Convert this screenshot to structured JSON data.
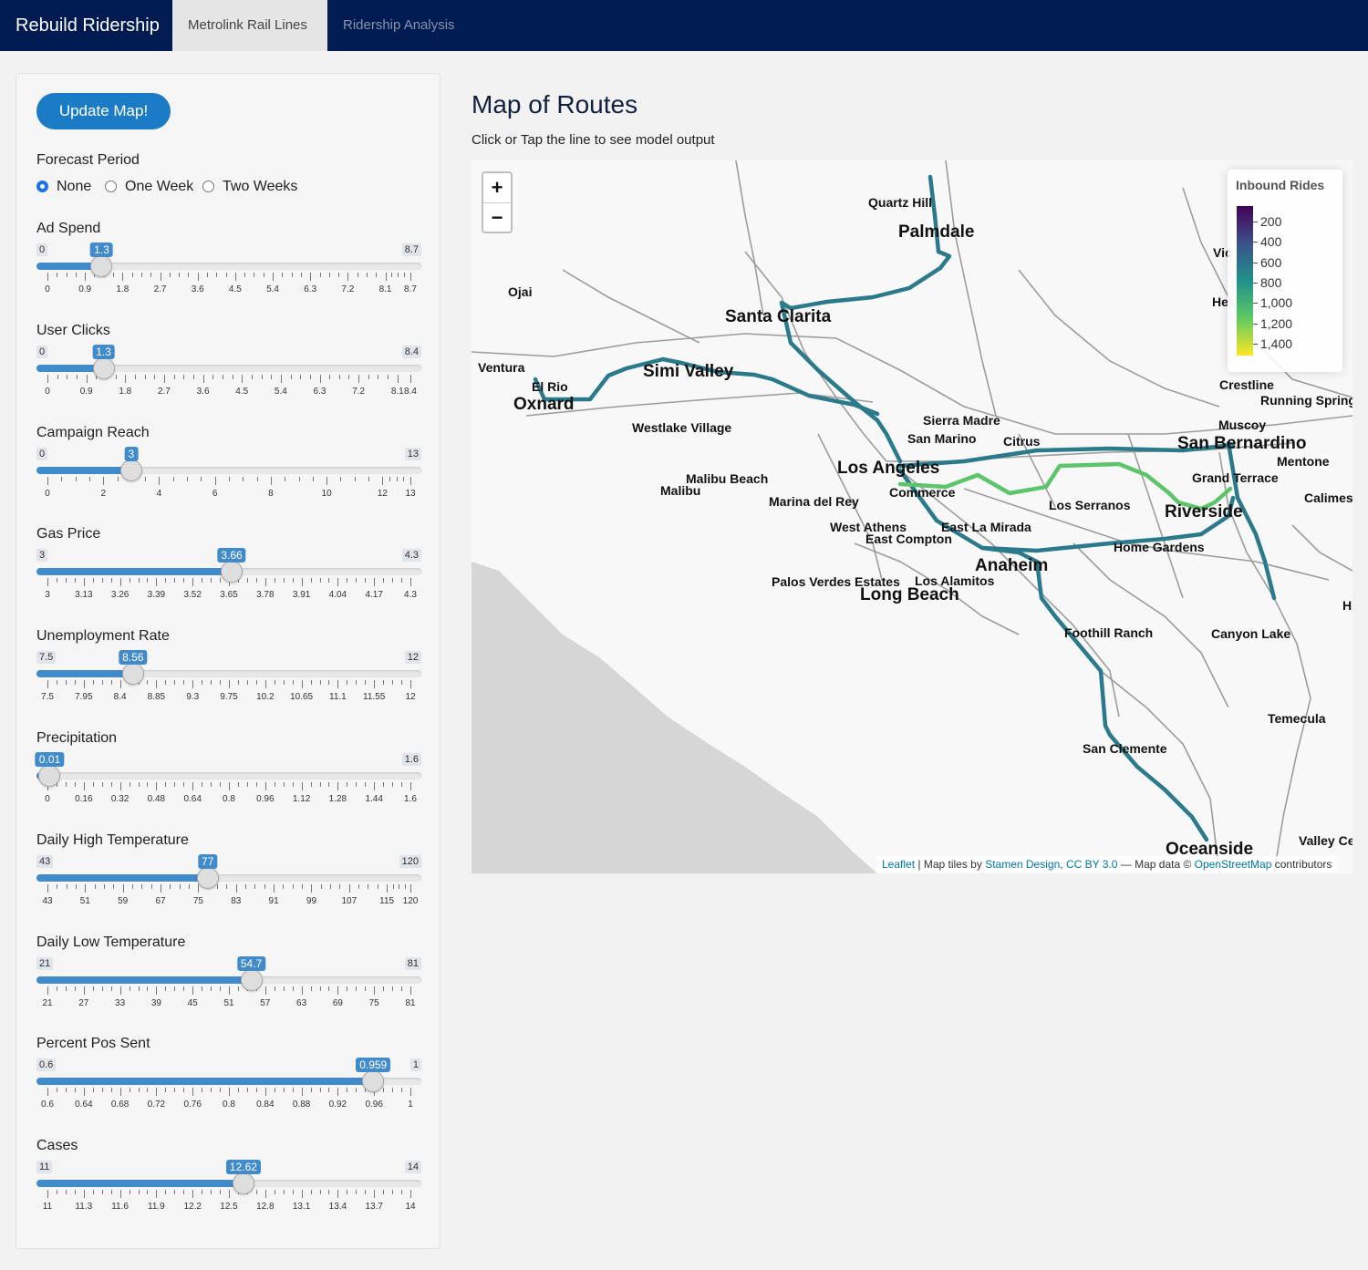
{
  "navbar": {
    "brand": "Rebuild Ridership",
    "tabs": [
      {
        "label": "Metrolink Rail Lines",
        "active": true
      },
      {
        "label": "Ridership Analysis",
        "active": false
      }
    ]
  },
  "sidebar": {
    "update_button": "Update Map!",
    "forecast_period": {
      "label": "Forecast Period",
      "options": [
        "None",
        "One Week",
        "Two Weeks"
      ],
      "selected": "None"
    },
    "sliders": [
      {
        "label": "Ad Spend",
        "min": 0,
        "max": 8.7,
        "value": 1.3,
        "min_label": "0",
        "max_label": "8.7",
        "value_label": "1.3",
        "ticks": [
          "0",
          "0.9",
          "1.8",
          "2.7",
          "3.6",
          "4.5",
          "5.4",
          "6.3",
          "7.2",
          "8.1",
          "8.7"
        ]
      },
      {
        "label": "User Clicks",
        "min": 0,
        "max": 8.4,
        "value": 1.3,
        "min_label": "0",
        "max_label": "8.4",
        "value_label": "1.3",
        "ticks": [
          "0",
          "0.9",
          "1.8",
          "2.7",
          "3.6",
          "4.5",
          "5.4",
          "6.3",
          "7.2",
          "8.1",
          "8.4"
        ]
      },
      {
        "label": "Campaign Reach",
        "min": 0,
        "max": 13,
        "value": 3,
        "min_label": "0",
        "max_label": "13",
        "value_label": "3",
        "ticks": [
          "0",
          "2",
          "4",
          "6",
          "8",
          "10",
          "12",
          "13"
        ]
      },
      {
        "label": "Gas Price",
        "min": 3,
        "max": 4.3,
        "value": 3.66,
        "min_label": "3",
        "max_label": "4.3",
        "value_label": "3.66",
        "ticks": [
          "3",
          "3.13",
          "3.26",
          "3.39",
          "3.52",
          "3.65",
          "3.78",
          "3.91",
          "4.04",
          "4.17",
          "4.3"
        ]
      },
      {
        "label": "Unemployment Rate",
        "min": 7.5,
        "max": 12,
        "value": 8.56,
        "min_label": "7.5",
        "max_label": "12",
        "value_label": "8.56",
        "ticks": [
          "7.5",
          "7.95",
          "8.4",
          "8.85",
          "9.3",
          "9.75",
          "10.2",
          "10.65",
          "11.1",
          "11.55",
          "12"
        ]
      },
      {
        "label": "Precipitation",
        "min": 0,
        "max": 1.6,
        "value": 0.01,
        "min_label": "0",
        "max_label": "1.6",
        "value_label": "0.01",
        "ticks": [
          "0",
          "0.16",
          "0.32",
          "0.48",
          "0.64",
          "0.8",
          "0.96",
          "1.12",
          "1.28",
          "1.44",
          "1.6"
        ]
      },
      {
        "label": "Daily High Temperature",
        "min": 43,
        "max": 120,
        "value": 77,
        "min_label": "43",
        "max_label": "120",
        "value_label": "77",
        "ticks": [
          "43",
          "51",
          "59",
          "67",
          "75",
          "83",
          "91",
          "99",
          "107",
          "115",
          "120"
        ]
      },
      {
        "label": "Daily Low Temperature",
        "min": 21,
        "max": 81,
        "value": 54.7,
        "min_label": "21",
        "max_label": "81",
        "value_label": "54.7",
        "ticks": [
          "21",
          "27",
          "33",
          "39",
          "45",
          "51",
          "57",
          "63",
          "69",
          "75",
          "81"
        ]
      },
      {
        "label": "Percent Pos Sent",
        "min": 0.6,
        "max": 1,
        "value": 0.959,
        "min_label": "0.6",
        "max_label": "1",
        "value_label": "0.959",
        "ticks": [
          "0.6",
          "0.64",
          "0.68",
          "0.72",
          "0.76",
          "0.8",
          "0.84",
          "0.88",
          "0.92",
          "0.96",
          "1"
        ]
      },
      {
        "label": "Cases",
        "min": 11,
        "max": 14,
        "value": 12.62,
        "min_label": "11",
        "max_label": "14",
        "value_label": "12.62",
        "ticks": [
          "11",
          "11.3",
          "11.6",
          "11.9",
          "12.2",
          "12.5",
          "12.8",
          "13.1",
          "13.4",
          "13.7",
          "14"
        ]
      }
    ]
  },
  "main": {
    "title": "Map of Routes",
    "subtitle": "Click or Tap the line to see model output"
  },
  "map": {
    "zoom_in": "+",
    "zoom_out": "−",
    "legend": {
      "title": "Inbound Rides",
      "labels": [
        "200",
        "400",
        "600",
        "800",
        "1,000",
        "1,200",
        "1,400"
      ]
    },
    "attribution": {
      "leaflet": "Leaflet",
      "tiles_prefix": "| Map tiles by",
      "stamen": "Stamen Design",
      "sep": ",",
      "cc": "CC BY 3.0",
      "data_prefix": "— Map data ©",
      "osm": "OpenStreetMap",
      "suffix": "contributors"
    },
    "route_colors": {
      "high_ridership": "#5cc46a",
      "mid_ridership": "#5fc96b",
      "typical": "#2a7a8c"
    },
    "places": [
      {
        "name": "Quartz Hill",
        "big": false
      },
      {
        "name": "Palmdale",
        "big": true
      },
      {
        "name": "Ojai",
        "big": false
      },
      {
        "name": "Santa Clarita",
        "big": true
      },
      {
        "name": "Ventura",
        "big": false
      },
      {
        "name": "El Rio",
        "big": false
      },
      {
        "name": "Oxnard",
        "big": true
      },
      {
        "name": "Simi Valley",
        "big": true
      },
      {
        "name": "Westlake Village",
        "big": false
      },
      {
        "name": "Sierra Madre",
        "big": false
      },
      {
        "name": "San Marino",
        "big": false
      },
      {
        "name": "Citrus",
        "big": false
      },
      {
        "name": "Los Angeles",
        "big": true
      },
      {
        "name": "Commerce",
        "big": false
      },
      {
        "name": "Malibu Beach",
        "big": false
      },
      {
        "name": "Malibu",
        "big": false
      },
      {
        "name": "Marina del Rey",
        "big": false
      },
      {
        "name": "West Athens",
        "big": false
      },
      {
        "name": "East Compton",
        "big": false
      },
      {
        "name": "East La Mirada",
        "big": false
      },
      {
        "name": "Los Serranos",
        "big": false
      },
      {
        "name": "Anaheim",
        "big": true
      },
      {
        "name": "Palos Verdes Estates",
        "big": false
      },
      {
        "name": "Los Alamitos",
        "big": false
      },
      {
        "name": "Long Beach",
        "big": true
      },
      {
        "name": "Foothill Ranch",
        "big": false
      },
      {
        "name": "Canyon Lake",
        "big": false
      },
      {
        "name": "San Clemente",
        "big": false
      },
      {
        "name": "Temecula",
        "big": false
      },
      {
        "name": "Oceanside",
        "big": true
      },
      {
        "name": "Valley Ce",
        "big": false
      },
      {
        "name": "Crestline",
        "big": false
      },
      {
        "name": "Running Spring",
        "big": false
      },
      {
        "name": "Muscoy",
        "big": false
      },
      {
        "name": "San Bernardino",
        "big": true
      },
      {
        "name": "Mentone",
        "big": false
      },
      {
        "name": "Grand Terrace",
        "big": false
      },
      {
        "name": "Calimes",
        "big": false
      },
      {
        "name": "Riverside",
        "big": true
      },
      {
        "name": "Home Gardens",
        "big": false
      },
      {
        "name": "Vic",
        "big": false
      },
      {
        "name": "He",
        "big": false
      },
      {
        "name": "H",
        "big": false
      }
    ]
  }
}
